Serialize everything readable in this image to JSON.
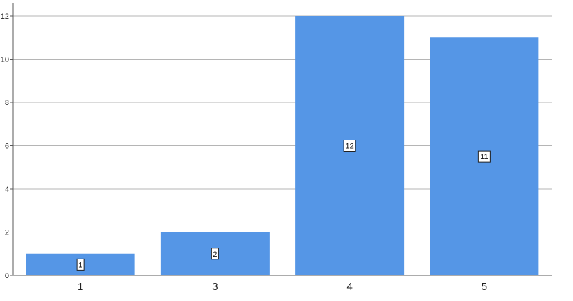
{
  "chart_data": {
    "type": "bar",
    "title": "",
    "xlabel": "",
    "ylabel": "",
    "categories": [
      "1",
      "3",
      "4",
      "5"
    ],
    "values": [
      1,
      2,
      12,
      11
    ],
    "data_labels": [
      "1",
      "2",
      "12",
      "11"
    ],
    "ylim": [
      0,
      12
    ],
    "y_ticks": [
      0,
      2,
      4,
      6,
      8,
      10,
      12
    ],
    "y_tick_labels": [
      "0",
      "2",
      "4",
      "6",
      "8",
      "10",
      "12"
    ],
    "grid": true,
    "legend": "none",
    "bar_color": "#5596e6",
    "grid_color": "#b5b5b5",
    "axis_color": "#5a5a5a"
  }
}
